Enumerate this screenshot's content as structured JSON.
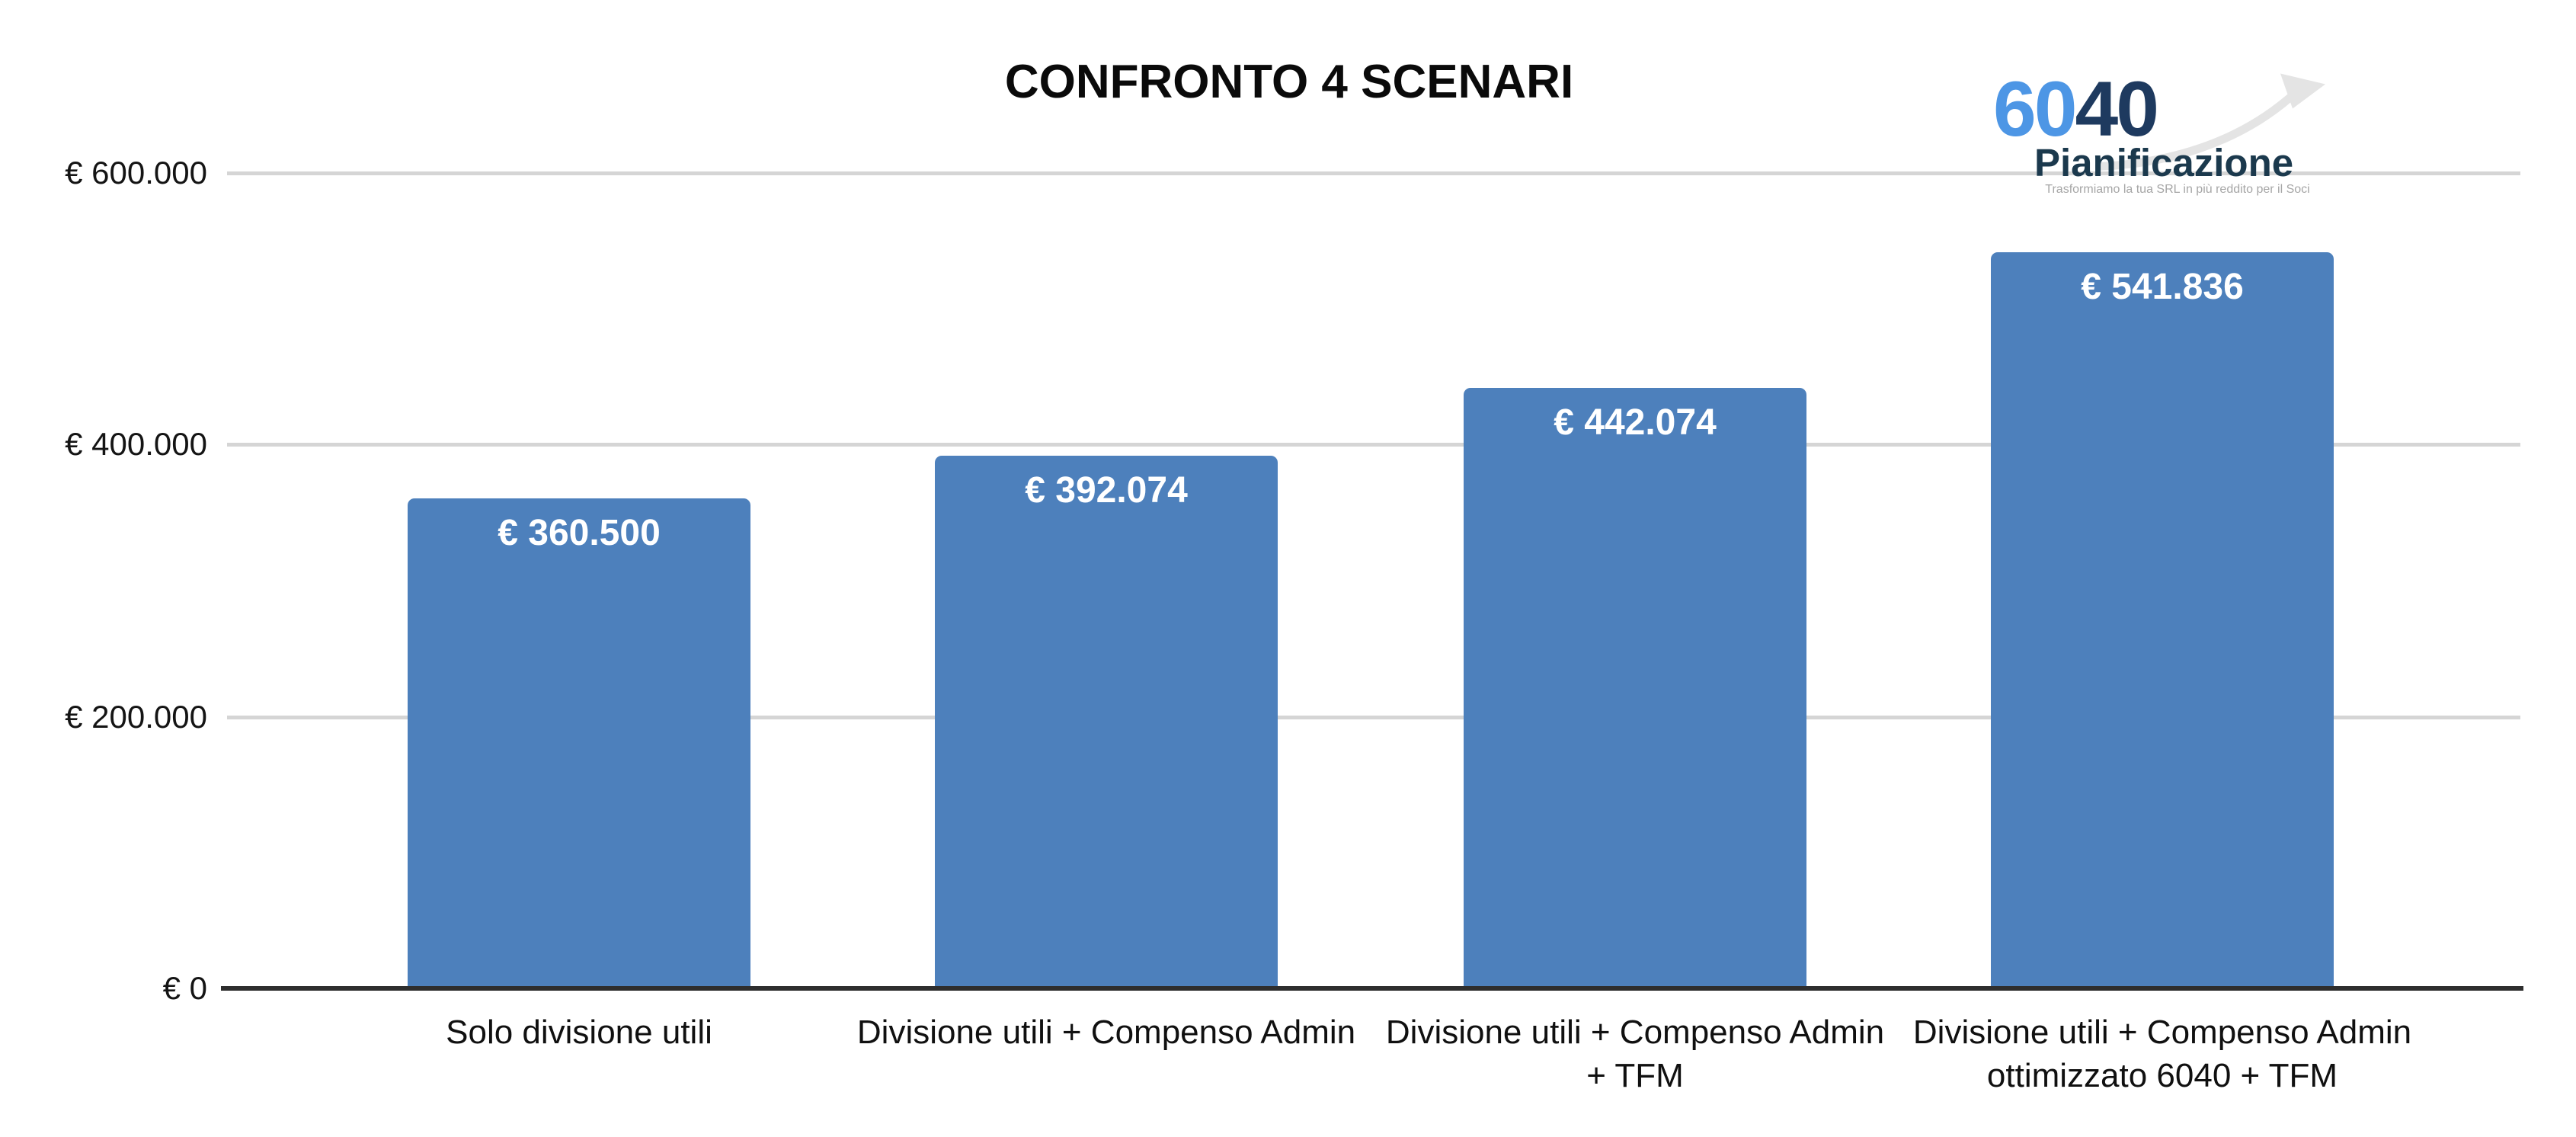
{
  "title": "CONFRONTO 4 SCENARI",
  "logo": {
    "number_light": "60",
    "number_dark": "40",
    "name": "Pianificazione",
    "tagline": "Trasformiamo la tua SRL in più reddito per il Soci",
    "colors": {
      "number_light": "#4D96E5",
      "number_dark": "#1E3A5F",
      "name": "#1B394D",
      "arrow": "#E4E4E4"
    }
  },
  "chart_data": {
    "type": "bar",
    "title": "CONFRONTO 4 SCENARI",
    "categories": [
      "Solo divisione utili",
      "Divisione utili + Compenso Admin",
      "Divisione utili + Compenso Admin + TFM",
      "Divisione utili + Compenso Admin ottimizzato 6040 + TFM"
    ],
    "category_lines": [
      [
        "Solo divisione utili"
      ],
      [
        "Divisione utili + Compenso Admin"
      ],
      [
        "Divisione utili + Compenso Admin",
        "+ TFM"
      ],
      [
        "Divisione utili + Compenso Admin",
        "ottimizzato 6040 + TFM"
      ]
    ],
    "values": [
      360500,
      392074,
      442074,
      541836
    ],
    "value_labels": [
      "€ 360.500",
      "€ 392.074",
      "€ 442.074",
      "€ 541.836"
    ],
    "xlabel": "",
    "ylabel": "",
    "ylim": [
      0,
      600000
    ],
    "y_ticks": [
      {
        "label": "€ 600.000",
        "value": 600000
      },
      {
        "label": "€ 400.000",
        "value": 400000
      },
      {
        "label": "€ 200.000",
        "value": 200000
      },
      {
        "label": "€ 0",
        "value": 0
      }
    ],
    "grid": true,
    "legend": false,
    "bar_color": "#4D80BC",
    "gridline_color": "#D5D5D5",
    "axis_color": "#2E2E2E",
    "value_label_color": "#FFFFFF"
  }
}
